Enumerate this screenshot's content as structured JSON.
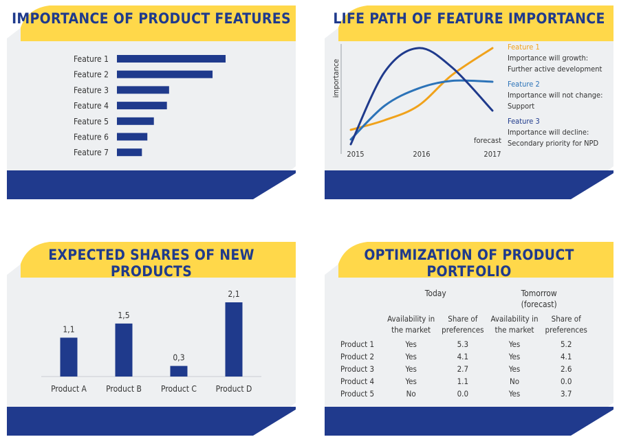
{
  "colors": {
    "title_bar": "#ffd84a",
    "panel_body": "#eef0f2",
    "footer": "#203a8d",
    "bar": "#1f3a8c",
    "feature1": "#f0a21b",
    "feature2": "#2c73b8",
    "feature3": "#1f3a8c"
  },
  "panels": {
    "features": {
      "title": "IMPORTANCE OF PRODUCT FEATURES"
    },
    "lifepath": {
      "title": "LIFE PATH OF FEATURE IMPORTANCE"
    },
    "shares": {
      "title": "EXPECTED SHARES OF NEW PRODUCTS"
    },
    "portfolio": {
      "title": "OPTIMIZATION OF PRODUCT PORTFOLIO"
    }
  },
  "chart_data": [
    {
      "type": "bar",
      "orientation": "horizontal",
      "title": "IMPORTANCE OF PRODUCT FEATURES",
      "categories": [
        "Feature 1",
        "Feature 2",
        "Feature 3",
        "Feature 4",
        "Feature 5",
        "Feature 6",
        "Feature 7"
      ],
      "values": [
        100,
        88,
        48,
        46,
        34,
        28,
        23
      ]
    },
    {
      "type": "line",
      "title": "LIFE PATH OF FEATURE IMPORTANCE",
      "ylabel": "importance",
      "x_ticks": [
        "2015",
        "2016",
        "2017"
      ],
      "x_note": "forecast",
      "series": [
        {
          "name": "Feature 1",
          "description_lines": [
            "Importance will growth:",
            "Further active development"
          ],
          "points": [
            [
              2015,
              0.15
            ],
            [
              2015.5,
              0.25
            ],
            [
              2016,
              0.4
            ],
            [
              2016.5,
              0.72
            ],
            [
              2017.1,
              1.0
            ]
          ]
        },
        {
          "name": "Feature 2",
          "description_lines": [
            "Importance will not change:",
            "Support"
          ],
          "points": [
            [
              2015,
              0.05
            ],
            [
              2015.5,
              0.4
            ],
            [
              2016,
              0.58
            ],
            [
              2016.5,
              0.66
            ],
            [
              2017.1,
              0.65
            ]
          ]
        },
        {
          "name": "Feature 3",
          "description_lines": [
            "Importance will decline:",
            "Secondary priority for NPD"
          ],
          "points": [
            [
              2015,
              0.0
            ],
            [
              2015.5,
              0.75
            ],
            [
              2016,
              1.0
            ],
            [
              2016.5,
              0.8
            ],
            [
              2017.1,
              0.35
            ]
          ]
        }
      ]
    },
    {
      "type": "bar",
      "title": "EXPECTED SHARES OF NEW PRODUCTS",
      "categories": [
        "Product A",
        "Product B",
        "Product C",
        "Product D"
      ],
      "values": [
        1.1,
        1.5,
        0.3,
        2.1
      ],
      "data_labels": [
        "1,1",
        "1,5",
        "0,3",
        "2,1"
      ]
    },
    {
      "type": "table",
      "title": "OPTIMIZATION OF PRODUCT PORTFOLIO",
      "group_headers": [
        "Today",
        "Tomorrow",
        "(forecast)"
      ],
      "column_headers": [
        [
          "Availability in",
          "the market"
        ],
        [
          "Share of",
          "preferences"
        ],
        [
          "Availability in",
          "the market"
        ],
        [
          "Share of",
          "preferences"
        ]
      ],
      "rows": [
        {
          "label": "Product 1",
          "cells": [
            "Yes",
            "5.3",
            "Yes",
            "5.2"
          ]
        },
        {
          "label": "Product 2",
          "cells": [
            "Yes",
            "4.1",
            "Yes",
            "4.1"
          ]
        },
        {
          "label": "Product 3",
          "cells": [
            "Yes",
            "2.7",
            "Yes",
            "2.6"
          ]
        },
        {
          "label": "Product 4",
          "cells": [
            "Yes",
            "1.1",
            "No",
            "0.0"
          ]
        },
        {
          "label": "Product 5",
          "cells": [
            "No",
            "0.0",
            "Yes",
            "3.7"
          ]
        }
      ]
    }
  ]
}
